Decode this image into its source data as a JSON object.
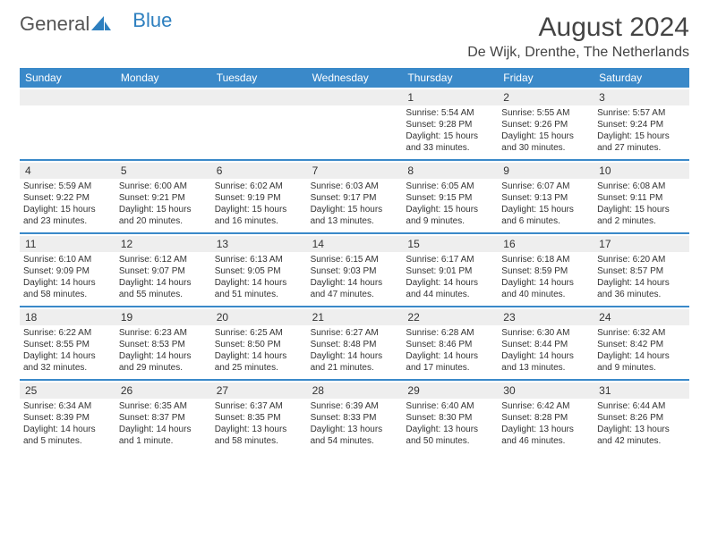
{
  "logo": {
    "text1": "General",
    "text2": "Blue"
  },
  "header": {
    "month_title": "August 2024",
    "location": "De Wijk, Drenthe, The Netherlands"
  },
  "colors": {
    "header_bar": "#3a89c9",
    "week_divider": "#3a89c9",
    "daynum_bg": "#eeeeee",
    "text": "#333333",
    "logo_gray": "#555555",
    "logo_blue": "#2d7fbf",
    "background": "#ffffff"
  },
  "dow": [
    "Sunday",
    "Monday",
    "Tuesday",
    "Wednesday",
    "Thursday",
    "Friday",
    "Saturday"
  ],
  "weeks": [
    [
      {
        "n": "",
        "sr": "",
        "ss": "",
        "dl": ""
      },
      {
        "n": "",
        "sr": "",
        "ss": "",
        "dl": ""
      },
      {
        "n": "",
        "sr": "",
        "ss": "",
        "dl": ""
      },
      {
        "n": "",
        "sr": "",
        "ss": "",
        "dl": ""
      },
      {
        "n": "1",
        "sr": "Sunrise: 5:54 AM",
        "ss": "Sunset: 9:28 PM",
        "dl": "Daylight: 15 hours and 33 minutes."
      },
      {
        "n": "2",
        "sr": "Sunrise: 5:55 AM",
        "ss": "Sunset: 9:26 PM",
        "dl": "Daylight: 15 hours and 30 minutes."
      },
      {
        "n": "3",
        "sr": "Sunrise: 5:57 AM",
        "ss": "Sunset: 9:24 PM",
        "dl": "Daylight: 15 hours and 27 minutes."
      }
    ],
    [
      {
        "n": "4",
        "sr": "Sunrise: 5:59 AM",
        "ss": "Sunset: 9:22 PM",
        "dl": "Daylight: 15 hours and 23 minutes."
      },
      {
        "n": "5",
        "sr": "Sunrise: 6:00 AM",
        "ss": "Sunset: 9:21 PM",
        "dl": "Daylight: 15 hours and 20 minutes."
      },
      {
        "n": "6",
        "sr": "Sunrise: 6:02 AM",
        "ss": "Sunset: 9:19 PM",
        "dl": "Daylight: 15 hours and 16 minutes."
      },
      {
        "n": "7",
        "sr": "Sunrise: 6:03 AM",
        "ss": "Sunset: 9:17 PM",
        "dl": "Daylight: 15 hours and 13 minutes."
      },
      {
        "n": "8",
        "sr": "Sunrise: 6:05 AM",
        "ss": "Sunset: 9:15 PM",
        "dl": "Daylight: 15 hours and 9 minutes."
      },
      {
        "n": "9",
        "sr": "Sunrise: 6:07 AM",
        "ss": "Sunset: 9:13 PM",
        "dl": "Daylight: 15 hours and 6 minutes."
      },
      {
        "n": "10",
        "sr": "Sunrise: 6:08 AM",
        "ss": "Sunset: 9:11 PM",
        "dl": "Daylight: 15 hours and 2 minutes."
      }
    ],
    [
      {
        "n": "11",
        "sr": "Sunrise: 6:10 AM",
        "ss": "Sunset: 9:09 PM",
        "dl": "Daylight: 14 hours and 58 minutes."
      },
      {
        "n": "12",
        "sr": "Sunrise: 6:12 AM",
        "ss": "Sunset: 9:07 PM",
        "dl": "Daylight: 14 hours and 55 minutes."
      },
      {
        "n": "13",
        "sr": "Sunrise: 6:13 AM",
        "ss": "Sunset: 9:05 PM",
        "dl": "Daylight: 14 hours and 51 minutes."
      },
      {
        "n": "14",
        "sr": "Sunrise: 6:15 AM",
        "ss": "Sunset: 9:03 PM",
        "dl": "Daylight: 14 hours and 47 minutes."
      },
      {
        "n": "15",
        "sr": "Sunrise: 6:17 AM",
        "ss": "Sunset: 9:01 PM",
        "dl": "Daylight: 14 hours and 44 minutes."
      },
      {
        "n": "16",
        "sr": "Sunrise: 6:18 AM",
        "ss": "Sunset: 8:59 PM",
        "dl": "Daylight: 14 hours and 40 minutes."
      },
      {
        "n": "17",
        "sr": "Sunrise: 6:20 AM",
        "ss": "Sunset: 8:57 PM",
        "dl": "Daylight: 14 hours and 36 minutes."
      }
    ],
    [
      {
        "n": "18",
        "sr": "Sunrise: 6:22 AM",
        "ss": "Sunset: 8:55 PM",
        "dl": "Daylight: 14 hours and 32 minutes."
      },
      {
        "n": "19",
        "sr": "Sunrise: 6:23 AM",
        "ss": "Sunset: 8:53 PM",
        "dl": "Daylight: 14 hours and 29 minutes."
      },
      {
        "n": "20",
        "sr": "Sunrise: 6:25 AM",
        "ss": "Sunset: 8:50 PM",
        "dl": "Daylight: 14 hours and 25 minutes."
      },
      {
        "n": "21",
        "sr": "Sunrise: 6:27 AM",
        "ss": "Sunset: 8:48 PM",
        "dl": "Daylight: 14 hours and 21 minutes."
      },
      {
        "n": "22",
        "sr": "Sunrise: 6:28 AM",
        "ss": "Sunset: 8:46 PM",
        "dl": "Daylight: 14 hours and 17 minutes."
      },
      {
        "n": "23",
        "sr": "Sunrise: 6:30 AM",
        "ss": "Sunset: 8:44 PM",
        "dl": "Daylight: 14 hours and 13 minutes."
      },
      {
        "n": "24",
        "sr": "Sunrise: 6:32 AM",
        "ss": "Sunset: 8:42 PM",
        "dl": "Daylight: 14 hours and 9 minutes."
      }
    ],
    [
      {
        "n": "25",
        "sr": "Sunrise: 6:34 AM",
        "ss": "Sunset: 8:39 PM",
        "dl": "Daylight: 14 hours and 5 minutes."
      },
      {
        "n": "26",
        "sr": "Sunrise: 6:35 AM",
        "ss": "Sunset: 8:37 PM",
        "dl": "Daylight: 14 hours and 1 minute."
      },
      {
        "n": "27",
        "sr": "Sunrise: 6:37 AM",
        "ss": "Sunset: 8:35 PM",
        "dl": "Daylight: 13 hours and 58 minutes."
      },
      {
        "n": "28",
        "sr": "Sunrise: 6:39 AM",
        "ss": "Sunset: 8:33 PM",
        "dl": "Daylight: 13 hours and 54 minutes."
      },
      {
        "n": "29",
        "sr": "Sunrise: 6:40 AM",
        "ss": "Sunset: 8:30 PM",
        "dl": "Daylight: 13 hours and 50 minutes."
      },
      {
        "n": "30",
        "sr": "Sunrise: 6:42 AM",
        "ss": "Sunset: 8:28 PM",
        "dl": "Daylight: 13 hours and 46 minutes."
      },
      {
        "n": "31",
        "sr": "Sunrise: 6:44 AM",
        "ss": "Sunset: 8:26 PM",
        "dl": "Daylight: 13 hours and 42 minutes."
      }
    ]
  ]
}
